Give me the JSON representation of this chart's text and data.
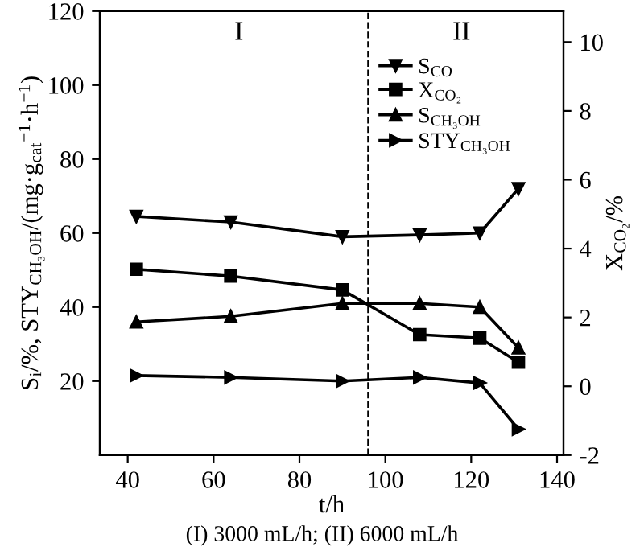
{
  "chart_data": {
    "type": "line",
    "xlabel": "t/h",
    "ylabel": "S$_{i}$/%, STY$_{CH₃OH}$/(mg·g$_{cat}$$^{−1}$·h$^{−1}$)",
    "y2label": "X$_{CO₂}$/%",
    "x": [
      42,
      64,
      90,
      108,
      122,
      131
    ],
    "series": [
      {
        "name": "S$_{CO}$",
        "color": "#000000",
        "marker": "triangle_down",
        "values": [
          64.5,
          63,
          59,
          59.5,
          60,
          72
        ]
      },
      {
        "name": "X$_{CO₂}$",
        "color": "#000000",
        "marker": "square",
        "axis": "y2",
        "values": [
          3.4,
          3.2,
          2.8,
          1.5,
          1.4,
          0.7
        ]
      },
      {
        "name": "S$_{CH₃OH}$",
        "color": "#000000",
        "marker": "triangle",
        "values": [
          36,
          37.5,
          41,
          41,
          40,
          29
        ]
      },
      {
        "name": "STY$_{CH₃OH}$",
        "color": "#000000",
        "marker": "triangle_right",
        "values": [
          21.5,
          21,
          20,
          21,
          19.5,
          7
        ]
      }
    ],
    "xlim": [
      33.5,
      141.5
    ],
    "xticks": [
      40,
      60,
      80,
      100,
      120,
      140
    ],
    "ylim": [
      0,
      120
    ],
    "yticks": [
      20,
      40,
      60,
      80,
      100,
      120
    ],
    "y2lim": [
      -2,
      10.9
    ],
    "y2ticks": [
      -2,
      0,
      2,
      4,
      6,
      8,
      10
    ],
    "ref_lines": [
      {
        "axis": "x",
        "value": 96,
        "color": "#000000",
        "line_style": "dashed"
      }
    ],
    "annotations": [
      "I",
      "II",
      "(I) 3000 mL/h; (II) 6000 mL/h"
    ],
    "legend": "top right",
    "grid": false,
    "line_style": "solid"
  }
}
